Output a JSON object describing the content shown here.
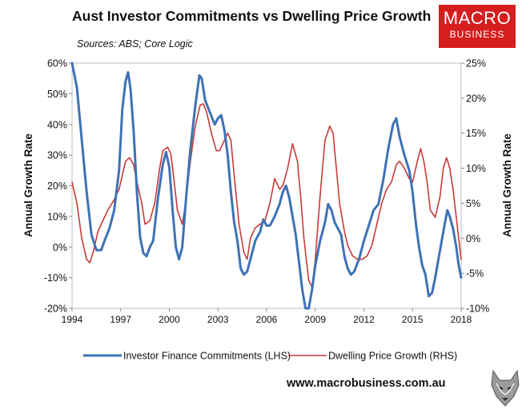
{
  "header": {
    "title": "Aust Investor Commitments vs Dwelling Price Growth",
    "subtitle": "Sources: ABS; Core Logic"
  },
  "logo": {
    "line1": "MACRO",
    "line2": "BUSINESS",
    "color": "#d61e1e"
  },
  "footer": {
    "website": "www.macrobusiness.com.au",
    "mascot_icon": "wolf-icon"
  },
  "chart_data": {
    "type": "line",
    "ylabel_left": "Annual Growth Rate",
    "ylabel_right": "Annual Growth Rate",
    "x_ticks": [
      "1994",
      "1997",
      "2000",
      "2003",
      "2006",
      "2009",
      "2012",
      "2015",
      "2018"
    ],
    "xlim": [
      1994,
      2018
    ],
    "ylim_left": [
      -20,
      60
    ],
    "ylim_right": [
      -10,
      25
    ],
    "y_ticks_left": [
      "60%",
      "50%",
      "40%",
      "30%",
      "20%",
      "10%",
      "0%",
      "-10%",
      "-20%"
    ],
    "y_ticks_right": [
      "25%",
      "20%",
      "15%",
      "10%",
      "5%",
      "0%",
      "-5%",
      "-10%"
    ],
    "series": [
      {
        "name": "Investor Finance Commitments (LHS)",
        "axis": "left",
        "color": "#3f72b5",
        "points": [
          [
            1994.0,
            60
          ],
          [
            1994.3,
            52
          ],
          [
            1994.6,
            35
          ],
          [
            1994.9,
            18
          ],
          [
            1995.2,
            4
          ],
          [
            1995.5,
            -1
          ],
          [
            1995.8,
            -1
          ],
          [
            1996.0,
            2
          ],
          [
            1996.3,
            6
          ],
          [
            1996.6,
            12
          ],
          [
            1996.9,
            25
          ],
          [
            1997.1,
            45
          ],
          [
            1997.3,
            54
          ],
          [
            1997.45,
            57
          ],
          [
            1997.6,
            52
          ],
          [
            1997.8,
            38
          ],
          [
            1998.0,
            18
          ],
          [
            1998.2,
            3
          ],
          [
            1998.4,
            -2
          ],
          [
            1998.6,
            -3
          ],
          [
            1998.8,
            0
          ],
          [
            1999.0,
            2
          ],
          [
            1999.3,
            16
          ],
          [
            1999.6,
            27
          ],
          [
            1999.8,
            31
          ],
          [
            2000.0,
            26
          ],
          [
            2000.2,
            12
          ],
          [
            2000.4,
            0
          ],
          [
            2000.6,
            -4
          ],
          [
            2000.8,
            0
          ],
          [
            2001.0,
            14
          ],
          [
            2001.3,
            32
          ],
          [
            2001.6,
            46
          ],
          [
            2001.85,
            56
          ],
          [
            2002.0,
            55
          ],
          [
            2002.2,
            48
          ],
          [
            2002.5,
            44
          ],
          [
            2002.8,
            40
          ],
          [
            2003.0,
            42
          ],
          [
            2003.2,
            43
          ],
          [
            2003.4,
            38
          ],
          [
            2003.6,
            30
          ],
          [
            2003.8,
            18
          ],
          [
            2004.0,
            8
          ],
          [
            2004.2,
            2
          ],
          [
            2004.4,
            -7
          ],
          [
            2004.6,
            -9
          ],
          [
            2004.8,
            -8
          ],
          [
            2005.0,
            -4
          ],
          [
            2005.3,
            2
          ],
          [
            2005.6,
            5
          ],
          [
            2005.8,
            9
          ],
          [
            2006.0,
            7
          ],
          [
            2006.2,
            7
          ],
          [
            2006.5,
            10
          ],
          [
            2006.8,
            14
          ],
          [
            2007.0,
            18
          ],
          [
            2007.2,
            20
          ],
          [
            2007.4,
            16
          ],
          [
            2007.6,
            10
          ],
          [
            2007.8,
            4
          ],
          [
            2008.0,
            -5
          ],
          [
            2008.2,
            -14
          ],
          [
            2008.4,
            -20
          ],
          [
            2008.6,
            -20
          ],
          [
            2008.8,
            -14
          ],
          [
            2009.0,
            -6
          ],
          [
            2009.3,
            2
          ],
          [
            2009.6,
            8
          ],
          [
            2009.8,
            14
          ],
          [
            2010.0,
            12
          ],
          [
            2010.2,
            8
          ],
          [
            2010.4,
            6
          ],
          [
            2010.6,
            4
          ],
          [
            2010.8,
            -3
          ],
          [
            2011.0,
            -7
          ],
          [
            2011.2,
            -9
          ],
          [
            2011.4,
            -8
          ],
          [
            2011.7,
            -4
          ],
          [
            2012.0,
            2
          ],
          [
            2012.3,
            7
          ],
          [
            2012.6,
            12
          ],
          [
            2012.9,
            14
          ],
          [
            2013.2,
            22
          ],
          [
            2013.5,
            32
          ],
          [
            2013.8,
            40
          ],
          [
            2014.0,
            42
          ],
          [
            2014.2,
            36
          ],
          [
            2014.5,
            30
          ],
          [
            2014.8,
            25
          ],
          [
            2015.0,
            18
          ],
          [
            2015.2,
            8
          ],
          [
            2015.4,
            0
          ],
          [
            2015.6,
            -6
          ],
          [
            2015.8,
            -9
          ],
          [
            2016.0,
            -16
          ],
          [
            2016.2,
            -15
          ],
          [
            2016.4,
            -10
          ],
          [
            2016.6,
            -4
          ],
          [
            2016.8,
            2
          ],
          [
            2017.0,
            8
          ],
          [
            2017.15,
            12
          ],
          [
            2017.3,
            10
          ],
          [
            2017.5,
            6
          ],
          [
            2017.7,
            0
          ],
          [
            2017.85,
            -6
          ],
          [
            2018.0,
            -10
          ]
        ]
      },
      {
        "name": "Dwelling Price Growth (RHS)",
        "axis": "right",
        "color": "#c83a3a",
        "points": [
          [
            1994.0,
            8
          ],
          [
            1994.3,
            5
          ],
          [
            1994.6,
            0
          ],
          [
            1994.9,
            -3
          ],
          [
            1995.1,
            -3.5
          ],
          [
            1995.3,
            -2
          ],
          [
            1995.6,
            1
          ],
          [
            1995.9,
            2.5
          ],
          [
            1996.2,
            4
          ],
          [
            1996.6,
            5.5
          ],
          [
            1996.9,
            7
          ],
          [
            1997.1,
            9
          ],
          [
            1997.3,
            11
          ],
          [
            1997.55,
            11.5
          ],
          [
            1997.8,
            10.5
          ],
          [
            1998.0,
            8
          ],
          [
            1998.3,
            5
          ],
          [
            1998.5,
            2
          ],
          [
            1998.8,
            2.5
          ],
          [
            1999.1,
            5
          ],
          [
            1999.4,
            10
          ],
          [
            1999.6,
            12.5
          ],
          [
            1999.9,
            13
          ],
          [
            2000.1,
            12
          ],
          [
            2000.3,
            8
          ],
          [
            2000.5,
            4
          ],
          [
            2000.8,
            2
          ],
          [
            2001.0,
            5
          ],
          [
            2001.3,
            11
          ],
          [
            2001.6,
            16
          ],
          [
            2001.9,
            19
          ],
          [
            2002.1,
            19.2
          ],
          [
            2002.3,
            18
          ],
          [
            2002.6,
            15
          ],
          [
            2002.9,
            12.5
          ],
          [
            2003.1,
            12.5
          ],
          [
            2003.3,
            13.5
          ],
          [
            2003.6,
            15
          ],
          [
            2003.8,
            14
          ],
          [
            2004.0,
            9
          ],
          [
            2004.3,
            2
          ],
          [
            2004.6,
            -2
          ],
          [
            2004.8,
            -3
          ],
          [
            2005.0,
            0
          ],
          [
            2005.3,
            1.5
          ],
          [
            2005.6,
            2
          ],
          [
            2005.9,
            2.5
          ],
          [
            2006.2,
            5
          ],
          [
            2006.5,
            8.5
          ],
          [
            2006.8,
            7
          ],
          [
            2007.0,
            7.5
          ],
          [
            2007.3,
            10
          ],
          [
            2007.6,
            13.5
          ],
          [
            2007.9,
            11
          ],
          [
            2008.1,
            6
          ],
          [
            2008.3,
            0
          ],
          [
            2008.6,
            -6
          ],
          [
            2008.8,
            -7
          ],
          [
            2009.0,
            -3
          ],
          [
            2009.3,
            6
          ],
          [
            2009.6,
            14
          ],
          [
            2009.9,
            16
          ],
          [
            2010.1,
            15
          ],
          [
            2010.3,
            10
          ],
          [
            2010.5,
            5
          ],
          [
            2010.8,
            1
          ],
          [
            2011.0,
            -1
          ],
          [
            2011.3,
            -2.5
          ],
          [
            2011.6,
            -3
          ],
          [
            2011.9,
            -3
          ],
          [
            2012.2,
            -2.5
          ],
          [
            2012.5,
            -1
          ],
          [
            2012.8,
            2
          ],
          [
            2013.1,
            5
          ],
          [
            2013.4,
            7
          ],
          [
            2013.7,
            8
          ],
          [
            2014.0,
            10.5
          ],
          [
            2014.2,
            11
          ],
          [
            2014.5,
            10
          ],
          [
            2014.8,
            8.5
          ],
          [
            2015.0,
            8
          ],
          [
            2015.3,
            11
          ],
          [
            2015.5,
            12.8
          ],
          [
            2015.7,
            11
          ],
          [
            2015.9,
            8
          ],
          [
            2016.1,
            4
          ],
          [
            2016.4,
            3
          ],
          [
            2016.7,
            6
          ],
          [
            2016.9,
            10
          ],
          [
            2017.1,
            11.5
          ],
          [
            2017.3,
            10
          ],
          [
            2017.5,
            7
          ],
          [
            2017.7,
            3
          ],
          [
            2017.9,
            -1
          ],
          [
            2018.0,
            -3
          ]
        ]
      }
    ],
    "legend_position": "bottom",
    "grid": false
  }
}
